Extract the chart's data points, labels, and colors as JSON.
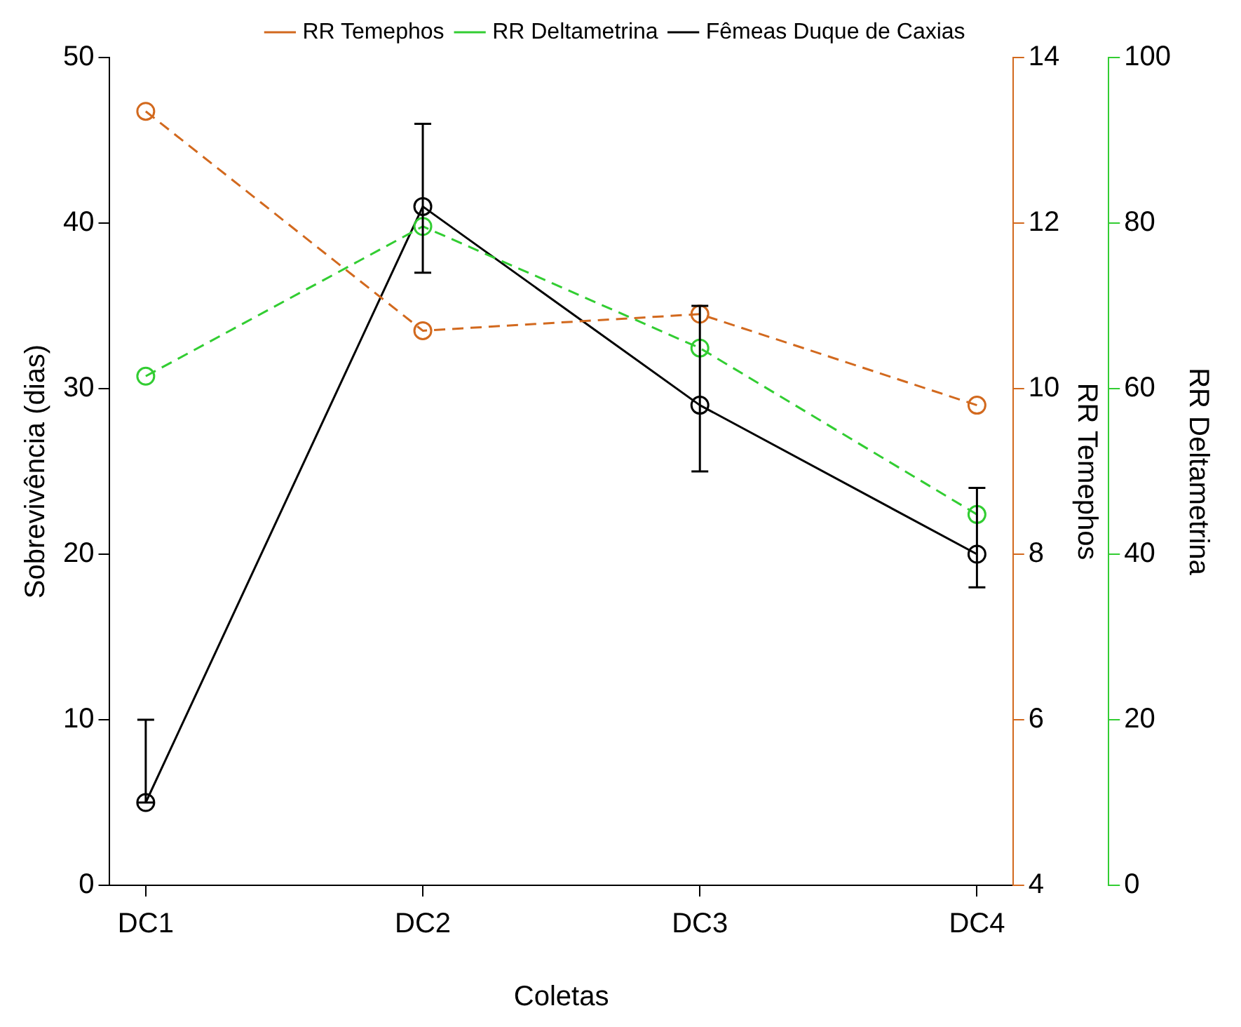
{
  "chart_data": {
    "type": "line",
    "xlabel": "Coletas",
    "ylabel": "Sobrevivência (dias)",
    "y2label": "RR Temephos",
    "y3label": "RR Deltametrina",
    "categories": [
      "DC1",
      "DC2",
      "DC3",
      "DC4"
    ],
    "series": [
      {
        "name": "RR Temephos",
        "color": "#d2691e",
        "axis": "y2",
        "line_style": "dashed",
        "values": [
          13.35,
          10.7,
          10.9,
          9.8
        ]
      },
      {
        "name": "RR Deltametrina",
        "color": "#32cd32",
        "axis": "y3",
        "line_style": "dashed",
        "values": [
          61.5,
          79.6,
          64.9,
          44.8
        ]
      },
      {
        "name": "Fêmeas Duque de Caxias",
        "color": "#000000",
        "line_style": "solid",
        "values": [
          5,
          41,
          29,
          20
        ],
        "errors": [
          [
            5,
            10
          ],
          [
            37,
            46
          ],
          [
            25,
            35
          ],
          [
            18,
            24
          ]
        ]
      }
    ],
    "ylim": [
      0,
      50
    ],
    "yticks": [
      0,
      10,
      20,
      30,
      40,
      50
    ],
    "y2lim": [
      4,
      14
    ],
    "y2ticks": [
      4,
      6,
      8,
      10,
      12,
      14
    ],
    "y3lim": [
      0,
      100
    ],
    "y3ticks": [
      0,
      20,
      40,
      60,
      80,
      100
    ],
    "marker": "circle",
    "grid": false,
    "legend": "top"
  }
}
